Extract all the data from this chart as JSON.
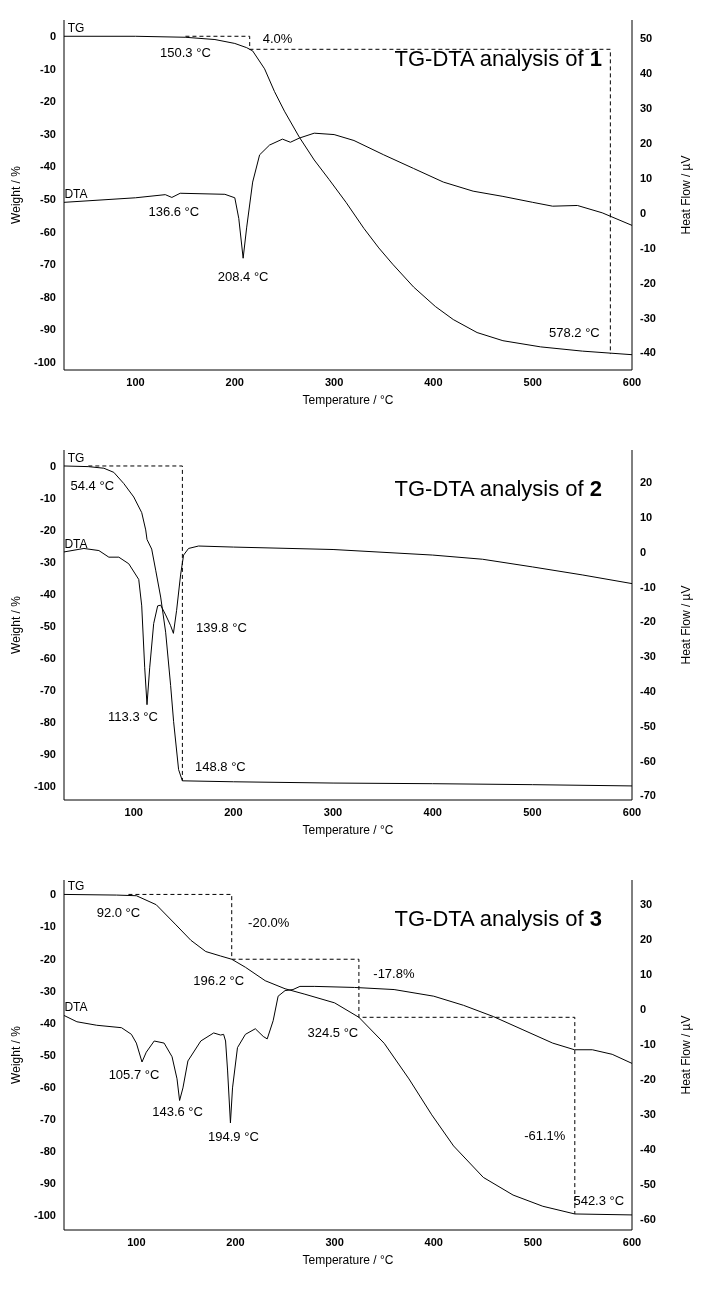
{
  "chart_data": [
    {
      "type": "line",
      "title": "TG-DTA analysis of 1",
      "xlabel": "Temperature / °C",
      "ylabel": "Weight / %",
      "y2label": "Heat Flow / µV",
      "xlim": [
        28,
        600
      ],
      "ylim": [
        -102.5,
        5
      ],
      "y2lim": [
        -45,
        55.2
      ],
      "xticks": [
        100,
        200,
        300,
        400,
        500,
        600
      ],
      "yticks": [
        -100,
        -90,
        -80,
        -70,
        -60,
        -50,
        -40,
        -30,
        -20,
        -10,
        0
      ],
      "y2ticks": [
        -40,
        -30,
        -20,
        -10,
        0,
        10,
        20,
        30,
        40,
        50
      ],
      "series": [
        {
          "name": "TG",
          "color": "#000000",
          "x": [
            28,
            100,
            150,
            180,
            200,
            212,
            218,
            230,
            240,
            250,
            265,
            280,
            295,
            312,
            330,
            345,
            359,
            380,
            402,
            420,
            444,
            470,
            508,
            550,
            600
          ],
          "values": [
            0,
            0,
            -0.3,
            -1,
            -2.2,
            -3.5,
            -4.5,
            -10,
            -17,
            -23,
            -31,
            -38,
            -44,
            -51,
            -59,
            -65,
            -70,
            -77,
            -83,
            -87,
            -91,
            -93.5,
            -95.4,
            -96.7,
            -97.8
          ]
        },
        {
          "name": "DTA",
          "color": "#000000",
          "axis": "y2",
          "x": [
            28,
            100,
            130,
            136.6,
            145,
            190,
            200,
            204,
            208.4,
            212,
            218,
            225,
            235,
            248,
            256,
            265,
            280,
            300,
            320,
            350,
            380,
            410,
            440,
            470,
            500,
            520,
            545,
            570,
            600
          ],
          "values": [
            3,
            4.3,
            5.2,
            4.4,
            5.6,
            5.3,
            4.3,
            -1.6,
            -13,
            -4.1,
            8.8,
            16.6,
            19.4,
            21.1,
            20.2,
            21.4,
            22.8,
            22.4,
            20.7,
            16.6,
            12.7,
            8.8,
            6.2,
            4.7,
            3,
            1.9,
            2.1,
            0,
            -3.6
          ]
        },
        {
          "type": "line",
          "line_style": "dashed",
          "color": "#000000",
          "x": [
            150.3,
            215,
            215,
            578.2,
            578.2
          ],
          "values": [
            0,
            0,
            -4,
            -4,
            -97.6
          ]
        }
      ],
      "annotations": [
        {
          "text": "150.3 °C",
          "x": 150.3,
          "y": -0.3
        },
        {
          "text": "4.0%",
          "x": 243,
          "y": -4
        },
        {
          "text": "578.2 °C",
          "x": 578.2,
          "y": -97.6
        },
        {
          "text": "136.6 °C",
          "x": 136.6,
          "y": -49.5
        },
        {
          "text": "208.4 °C",
          "x": 208.4,
          "y": -68.2
        }
      ]
    },
    {
      "type": "line",
      "title": "TG-DTA analysis of 2",
      "xlabel": "Temperature / °C",
      "ylabel": "Weight / %",
      "y2label": "Heat Flow / µV",
      "xlim": [
        30,
        600
      ],
      "ylim": [
        -104.5,
        5
      ],
      "y2lim": [
        -71.3,
        29.3
      ],
      "xticks": [
        100,
        200,
        300,
        400,
        500,
        600
      ],
      "yticks": [
        -100,
        -90,
        -80,
        -70,
        -60,
        -50,
        -40,
        -30,
        -20,
        -10,
        0
      ],
      "y2ticks": [
        -70,
        -60,
        -50,
        -40,
        -30,
        -20,
        -10,
        0,
        10,
        20
      ],
      "series": [
        {
          "name": "TG",
          "color": "#000000",
          "x": [
            30,
            54.4,
            70,
            80,
            90,
            100,
            108,
            112,
            113.3,
            118,
            122,
            127,
            132,
            137,
            140,
            145,
            148.8,
            200,
            300,
            400,
            500,
            600
          ],
          "values": [
            0,
            -0.2,
            -0.7,
            -2,
            -5.5,
            -9.7,
            -14.6,
            -20,
            -23,
            -26,
            -32.6,
            -41,
            -52,
            -68.7,
            -80,
            -95,
            -98.5,
            -98.8,
            -99.2,
            -99.4,
            -99.7,
            -100.1
          ]
        },
        {
          "name": "DTA",
          "color": "#000000",
          "axis": "y2",
          "x": [
            30,
            50,
            65,
            75,
            85,
            95,
            105,
            108,
            111,
            113.3,
            116,
            120,
            124,
            127,
            132,
            137,
            139.8,
            143,
            147,
            150,
            155,
            165,
            200,
            300,
            400,
            450,
            500,
            550,
            600
          ],
          "values": [
            0,
            1,
            0.4,
            -1.5,
            -1.5,
            -3.4,
            -7.9,
            -15.5,
            -33.3,
            -43.9,
            -33.3,
            -20.6,
            -15.5,
            -15.3,
            -18.1,
            -21.2,
            -23.4,
            -16.8,
            -6.6,
            -0.9,
            1,
            1.7,
            1.4,
            0.7,
            -0.9,
            -2.1,
            -4.3,
            -6.6,
            -9.1
          ]
        },
        {
          "type": "line",
          "line_style": "dashed",
          "color": "#000000",
          "x": [
            54.4,
            148.8,
            148.8
          ],
          "values": [
            0,
            0,
            -98.5
          ]
        }
      ],
      "annotations": [
        {
          "text": "54.4 °C",
          "x": 54.4,
          "y": -0.2
        },
        {
          "text": "139.8 °C",
          "x": 139.8,
          "y": -52.4
        },
        {
          "text": "113.3 °C",
          "x": 113.3,
          "y": -74.7
        },
        {
          "text": "148.8 °C",
          "x": 148.8,
          "y": -98.5
        }
      ]
    },
    {
      "type": "line",
      "title": "TG-DTA analysis of 3",
      "xlabel": "Temperature / °C",
      "ylabel": "Weight / %",
      "y2label": "Heat Flow / µV",
      "xlim": [
        27,
        600
      ],
      "ylim": [
        -104.6,
        4.5
      ],
      "y2lim": [
        -63.2,
        36.8
      ],
      "xticks": [
        100,
        200,
        300,
        400,
        500,
        600
      ],
      "yticks": [
        -100,
        -90,
        -80,
        -70,
        -60,
        -50,
        -40,
        -30,
        -20,
        -10,
        0
      ],
      "y2ticks": [
        -60,
        -50,
        -40,
        -30,
        -20,
        -10,
        0,
        10,
        20,
        30
      ],
      "series": [
        {
          "name": "TG",
          "color": "#000000",
          "x": [
            27,
            80,
            100,
            120,
            140,
            155,
            170,
            185,
            196.2,
            210,
            230,
            250,
            270,
            300,
            324.5,
            350,
            375,
            398,
            420,
            450,
            480,
            510,
            542.3,
            600
          ],
          "values": [
            0,
            -0.2,
            -0.4,
            -3.2,
            -9.5,
            -14.3,
            -17.8,
            -19.2,
            -20.2,
            -22.7,
            -26.9,
            -29.4,
            -31.1,
            -33.8,
            -38.3,
            -46.4,
            -57.5,
            -68.7,
            -78.4,
            -88.2,
            -93.7,
            -97.2,
            -99.6,
            -99.9
          ]
        },
        {
          "name": "DTA",
          "color": "#000000",
          "axis": "y2",
          "x": [
            27,
            40,
            60,
            85,
            95,
            100,
            105.7,
            110,
            118,
            128,
            136,
            141,
            143.6,
            147,
            152,
            165,
            178,
            185,
            188,
            190,
            192,
            194.9,
            197,
            202,
            210,
            220,
            228,
            232,
            238,
            243,
            250,
            258,
            265,
            280,
            320,
            360,
            400,
            430,
            460,
            490,
            520,
            542,
            560,
            580,
            600
          ],
          "values": [
            -1.9,
            -3.7,
            -4.7,
            -5.4,
            -7.3,
            -9.8,
            -15.2,
            -12.4,
            -9.2,
            -9.8,
            -13.7,
            -20,
            -26.2,
            -22.6,
            -14.9,
            -9.2,
            -6.9,
            -7.5,
            -7.3,
            -9.2,
            -17.5,
            -32.6,
            -22.6,
            -11.1,
            -7.3,
            -5.7,
            -7.9,
            -8.6,
            -3.4,
            3.6,
            5.2,
            5.5,
            6.4,
            6.4,
            6.1,
            5.5,
            3.6,
            1,
            -2.2,
            -6,
            -9.8,
            -11.7,
            -11.7,
            -13,
            -15.6
          ]
        },
        {
          "type": "line",
          "line_style": "dashed",
          "color": "#000000",
          "x": [
            92,
            196.2,
            196.2,
            324.5,
            324.5,
            542.3,
            542.3
          ],
          "values": [
            0,
            0,
            -20.2,
            -20.2,
            -38.3,
            -38.3,
            -99.6
          ]
        }
      ],
      "annotations": [
        {
          "text": "92.0 °C",
          "x": 92,
          "y": -0.3
        },
        {
          "text": "-20.0%",
          "x": 196.2,
          "y": -8.8
        },
        {
          "text": "196.2 °C",
          "x": 196.2,
          "y": -20.2
        },
        {
          "text": "-17.8%",
          "x": 324.5,
          "y": -24.5
        },
        {
          "text": "324.5 °C",
          "x": 324.5,
          "y": -38.3
        },
        {
          "text": "105.7 °C",
          "x": 105.7,
          "y": -52.2
        },
        {
          "text": "143.6 °C",
          "x": 143.6,
          "y": -64.2
        },
        {
          "text": "194.9 °C",
          "x": 194.9,
          "y": -71.2
        },
        {
          "text": "-61.1%",
          "x": 542.3,
          "y": -75.2
        },
        {
          "text": "542.3 °C",
          "x": 542.3,
          "y": -99.6
        }
      ]
    }
  ]
}
